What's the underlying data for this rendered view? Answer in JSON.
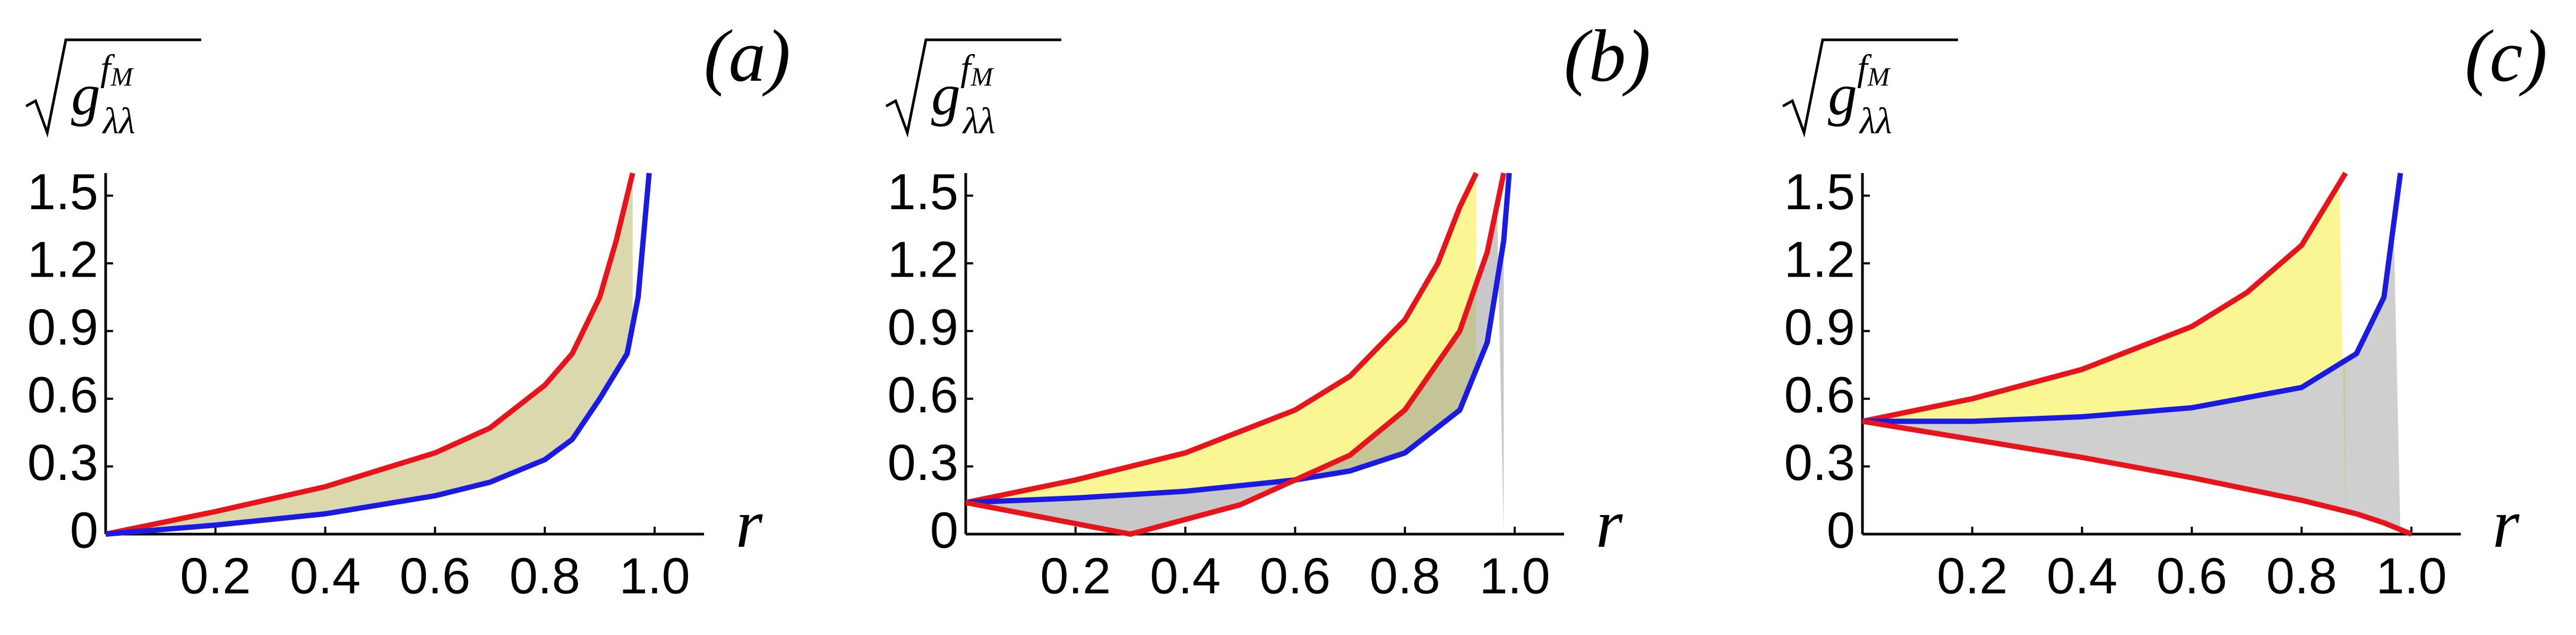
{
  "chart_data": [
    {
      "type": "line",
      "title": "(a)",
      "xlabel": "r",
      "ylabel": {
        "base": "g",
        "sub": "λλ",
        "sup": "f",
        "supsub": "M"
      },
      "xlim": [
        0,
        1.09
      ],
      "ylim": [
        0,
        1.6
      ],
      "xticks": [
        0.2,
        0.4,
        0.6,
        0.8,
        {
          "value": 1,
          "label": "1.0"
        }
      ],
      "yticks": [
        0,
        0.3,
        0.6,
        0.9,
        1.2,
        1.5
      ],
      "series": [
        {
          "color": "#e8141c",
          "x": [
            0,
            0.2,
            0.4,
            0.6,
            0.7,
            0.8,
            0.85,
            0.9,
            0.93,
            0.96
          ],
          "values": [
            0,
            0.1,
            0.21,
            0.36,
            0.47,
            0.66,
            0.8,
            1.05,
            1.3,
            1.6
          ]
        },
        {
          "color": "#1a1ae0",
          "x": [
            0,
            0.2,
            0.4,
            0.6,
            0.7,
            0.8,
            0.85,
            0.9,
            0.95,
            0.97,
            0.99
          ],
          "values": [
            0,
            0.04,
            0.09,
            0.17,
            0.23,
            0.33,
            0.42,
            0.6,
            0.8,
            1.05,
            1.6
          ]
        }
      ]
    },
    {
      "type": "line",
      "title": "(b)",
      "xlabel": "r",
      "ylabel": {
        "base": "g",
        "sub": "λλ",
        "sup": "f",
        "supsub": "M"
      },
      "xlim": [
        0,
        1.09
      ],
      "ylim": [
        0,
        1.6
      ],
      "xticks": [
        0.2,
        0.4,
        0.6,
        0.8,
        {
          "value": 1,
          "label": "1.0"
        }
      ],
      "yticks": [
        0,
        0.3,
        0.6,
        0.9,
        1.2,
        1.5
      ],
      "series": [
        {
          "color": "#e8141c",
          "x": [
            0,
            0.2,
            0.4,
            0.6,
            0.7,
            0.8,
            0.86,
            0.9,
            0.93
          ],
          "values": [
            0.14,
            0.24,
            0.36,
            0.55,
            0.7,
            0.95,
            1.2,
            1.45,
            1.6
          ]
        },
        {
          "color": "#1a1ae0",
          "x": [
            0,
            0.2,
            0.4,
            0.6,
            0.7,
            0.8,
            0.9,
            0.95,
            0.98,
            0.99
          ],
          "values": [
            0.14,
            0.16,
            0.19,
            0.24,
            0.28,
            0.36,
            0.55,
            0.85,
            1.3,
            1.6
          ]
        },
        {
          "color": "#e8141c",
          "x": [
            0,
            0.3,
            0.5,
            0.7,
            0.8,
            0.9,
            0.95,
            0.98
          ],
          "values": [
            0.14,
            0,
            0.13,
            0.35,
            0.55,
            0.9,
            1.25,
            1.6
          ]
        }
      ]
    },
    {
      "type": "line",
      "title": "(c)",
      "xlabel": "r",
      "ylabel": {
        "base": "g",
        "sub": "λλ",
        "sup": "f",
        "supsub": "M"
      },
      "xlim": [
        0,
        1.09
      ],
      "ylim": [
        0,
        1.6
      ],
      "xticks": [
        0.2,
        0.4,
        0.6,
        0.8,
        {
          "value": 1,
          "label": "1.0"
        }
      ],
      "yticks": [
        0,
        0.3,
        0.6,
        0.9,
        1.2,
        1.5
      ],
      "series": [
        {
          "color": "#e8141c",
          "x": [
            0,
            0.2,
            0.4,
            0.6,
            0.7,
            0.8,
            0.88
          ],
          "values": [
            0.5,
            0.6,
            0.73,
            0.92,
            1.07,
            1.28,
            1.6
          ]
        },
        {
          "color": "#1a1ae0",
          "x": [
            0,
            0.2,
            0.4,
            0.6,
            0.8,
            0.9,
            0.95,
            0.98
          ],
          "values": [
            0.5,
            0.5,
            0.52,
            0.56,
            0.65,
            0.8,
            1.05,
            1.6
          ]
        },
        {
          "color": "#e8141c",
          "x": [
            0,
            0.2,
            0.4,
            0.6,
            0.8,
            0.9,
            0.95,
            1.0
          ],
          "values": [
            0.5,
            0.42,
            0.34,
            0.25,
            0.15,
            0.09,
            0.05,
            0
          ]
        }
      ]
    }
  ]
}
